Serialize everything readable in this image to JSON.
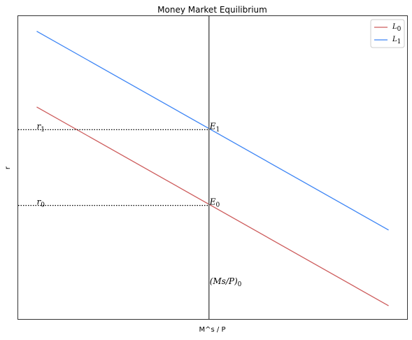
{
  "chart_data": {
    "type": "line",
    "title": "Money Market Equilibrium",
    "xlabel": "M^s / P",
    "ylabel": "r",
    "xlim": [
      0,
      10.5
    ],
    "ylim": [
      0,
      8
    ],
    "grid": false,
    "show_ticks": false,
    "legend_position": "top-right",
    "series": [
      {
        "name": "L0",
        "name_main": "L",
        "name_sub": "0",
        "color": "#cd5c5c",
        "x": [
          0.5,
          10
        ],
        "y": [
          5.6,
          0.35
        ]
      },
      {
        "name": "L1",
        "name_main": "L",
        "name_sub": "1",
        "color": "#3d85f5",
        "x": [
          0.5,
          10
        ],
        "y": [
          7.6,
          2.35
        ]
      }
    ],
    "supply_line": {
      "x": 5.15,
      "color": "#6f6f6f",
      "label_main": "(Ms/P)",
      "label_sub": "0",
      "label_y": 1.0
    },
    "equilibria": [
      {
        "label_main": "E",
        "label_sub": "0",
        "y": 3.0,
        "r_main": "r",
        "r_sub": "0"
      },
      {
        "label_main": "E",
        "label_sub": "1",
        "y": 5.0,
        "r_main": "r",
        "r_sub": "1"
      }
    ]
  }
}
